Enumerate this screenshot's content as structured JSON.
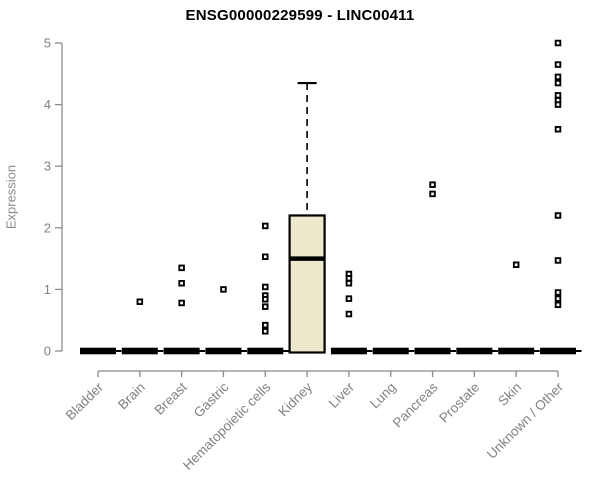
{
  "chart_data": {
    "type": "boxplot",
    "title": "ENSG00000229599 - LINC00411",
    "ylabel": "Expression",
    "ylim": [
      0,
      5
    ],
    "yticks": [
      0,
      1,
      2,
      3,
      4,
      5
    ],
    "grid": false,
    "legend": "none",
    "categories": [
      "Bladder",
      "Brain",
      "Breast",
      "Gastric",
      "Hematopoietic cells",
      "Kidney",
      "Liver",
      "Lung",
      "Pancreas",
      "Prostate",
      "Skin",
      "Unknown / Other"
    ],
    "boxes": [
      {
        "category": "Bladder",
        "q1": 0,
        "median": 0,
        "q3": 0,
        "whisker_low": 0,
        "whisker_high": 0,
        "outliers": []
      },
      {
        "category": "Brain",
        "q1": 0,
        "median": 0,
        "q3": 0,
        "whisker_low": 0,
        "whisker_high": 0,
        "outliers": [
          0.8
        ]
      },
      {
        "category": "Breast",
        "q1": 0,
        "median": 0,
        "q3": 0,
        "whisker_low": 0,
        "whisker_high": 0,
        "outliers": [
          1.35,
          1.1,
          0.78
        ]
      },
      {
        "category": "Gastric",
        "q1": 0,
        "median": 0,
        "q3": 0,
        "whisker_low": 0,
        "whisker_high": 0,
        "outliers": [
          1.0
        ]
      },
      {
        "category": "Hematopoietic cells",
        "q1": 0,
        "median": 0,
        "q3": 0,
        "whisker_low": 0,
        "whisker_high": 0,
        "outliers": [
          2.03,
          1.53,
          1.04,
          0.9,
          0.84,
          0.72,
          0.42,
          0.32
        ]
      },
      {
        "category": "Kidney",
        "q1": 0,
        "median": 1.5,
        "q3": 2.2,
        "whisker_low": 0,
        "whisker_high": 4.35,
        "outliers": []
      },
      {
        "category": "Liver",
        "q1": 0,
        "median": 0,
        "q3": 0,
        "whisker_low": 0,
        "whisker_high": 0,
        "outliers": [
          1.25,
          1.18,
          1.1,
          0.85,
          0.6
        ]
      },
      {
        "category": "Lung",
        "q1": 0,
        "median": 0,
        "q3": 0,
        "whisker_low": 0,
        "whisker_high": 0,
        "outliers": []
      },
      {
        "category": "Pancreas",
        "q1": 0,
        "median": 0,
        "q3": 0,
        "whisker_low": 0,
        "whisker_high": 0,
        "outliers": [
          2.7,
          2.55
        ]
      },
      {
        "category": "Prostate",
        "q1": 0,
        "median": 0,
        "q3": 0,
        "whisker_low": 0,
        "whisker_high": 0,
        "outliers": []
      },
      {
        "category": "Skin",
        "q1": 0,
        "median": 0,
        "q3": 0,
        "whisker_low": 0,
        "whisker_high": 0,
        "outliers": [
          1.4
        ]
      },
      {
        "category": "Unknown / Other",
        "q1": 0,
        "median": 0,
        "q3": 0,
        "whisker_low": 0,
        "whisker_high": 0,
        "outliers": [
          5.0,
          4.65,
          4.45,
          4.35,
          4.15,
          4.07,
          4.0,
          3.6,
          2.2,
          1.47,
          0.95,
          0.85,
          0.75
        ]
      }
    ],
    "colors": {
      "box_fill": "#EEE8CD",
      "box_stroke": "#000000",
      "median": "#000000",
      "outlier_stroke": "#000000",
      "outlier_fill": "#ffffff",
      "axis_line": "#8a8a8a",
      "tick_label": "#828282",
      "title": "#000000"
    }
  }
}
